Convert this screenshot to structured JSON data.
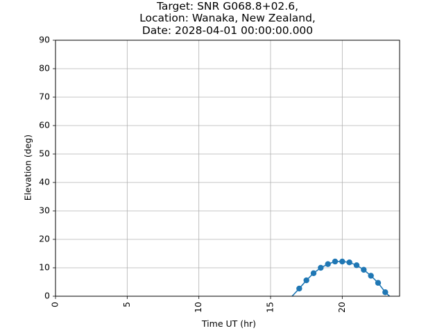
{
  "chart_data": {
    "type": "line",
    "title_lines": [
      "Target: SNR G068.8+02.6,",
      "Location: Wanaka, New Zealand,",
      "Date: 2028-04-01 00:00:00.000"
    ],
    "xlabel": "Time UT (hr)",
    "ylabel": "Elevation (deg)",
    "xlim": [
      0,
      24
    ],
    "ylim": [
      0,
      90
    ],
    "xticks": [
      0,
      5,
      10,
      15,
      20
    ],
    "yticks": [
      0,
      10,
      20,
      30,
      40,
      50,
      60,
      70,
      80,
      90
    ],
    "grid": true,
    "line_color": "#1f77b4",
    "series": [
      {
        "x": [
          16.5,
          17.0,
          17.5,
          18.0,
          18.5,
          19.0,
          19.5,
          20.0,
          20.5,
          21.0,
          21.5,
          22.0,
          22.5,
          23.0,
          23.3
        ],
        "y": [
          0.0,
          2.7,
          5.6,
          8.1,
          10.0,
          11.3,
          12.2,
          12.2,
          11.9,
          10.9,
          9.3,
          7.2,
          4.7,
          1.4,
          0.0
        ],
        "markers": [
          false,
          true,
          true,
          true,
          true,
          true,
          true,
          true,
          true,
          true,
          true,
          true,
          true,
          true,
          false
        ]
      }
    ]
  }
}
